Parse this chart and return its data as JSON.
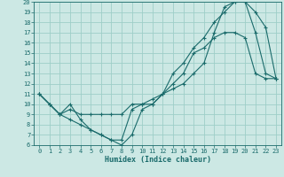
{
  "xlabel": "Humidex (Indice chaleur)",
  "bg_color": "#cce8e4",
  "grid_color": "#9ecec8",
  "line_color": "#1a6b6b",
  "xlim": [
    -0.5,
    23.5
  ],
  "ylim": [
    6,
    20
  ],
  "xticks": [
    0,
    1,
    2,
    3,
    4,
    5,
    6,
    7,
    8,
    9,
    10,
    11,
    12,
    13,
    14,
    15,
    16,
    17,
    18,
    19,
    20,
    21,
    22,
    23
  ],
  "yticks": [
    6,
    7,
    8,
    9,
    10,
    11,
    12,
    13,
    14,
    15,
    16,
    17,
    18,
    19,
    20
  ],
  "line1_x": [
    0,
    1,
    2,
    3,
    4,
    5,
    6,
    7,
    8,
    9,
    10,
    11,
    12,
    13,
    14,
    15,
    16,
    17,
    18,
    19,
    20,
    21,
    22,
    23
  ],
  "line1_y": [
    11,
    10,
    9,
    10,
    8.5,
    7.5,
    7,
    6.5,
    6.5,
    9.5,
    10,
    10,
    11,
    12,
    13,
    15,
    15.5,
    16.5,
    17,
    17,
    16.5,
    13,
    12.5,
    12.5
  ],
  "line2_x": [
    0,
    1,
    2,
    3,
    4,
    5,
    6,
    7,
    8,
    9,
    10,
    11,
    12,
    13,
    14,
    15,
    16,
    17,
    18,
    19,
    20,
    21,
    22,
    23
  ],
  "line2_y": [
    11,
    10,
    9,
    9.5,
    9,
    9,
    9,
    9,
    9,
    10,
    10,
    10.5,
    11,
    11.5,
    12,
    13,
    14,
    17,
    19.5,
    20,
    20,
    17,
    13,
    12.5
  ],
  "line3_x": [
    0,
    1,
    2,
    3,
    4,
    5,
    6,
    7,
    8,
    9,
    10,
    11,
    12,
    13,
    14,
    15,
    16,
    17,
    18,
    19,
    20,
    21,
    22,
    23
  ],
  "line3_y": [
    11,
    10,
    9,
    8.5,
    8,
    7.5,
    7,
    6.5,
    6,
    7,
    9.5,
    10,
    11,
    13,
    14,
    15.5,
    16.5,
    18,
    19,
    20,
    20,
    19,
    17.5,
    12.5
  ]
}
